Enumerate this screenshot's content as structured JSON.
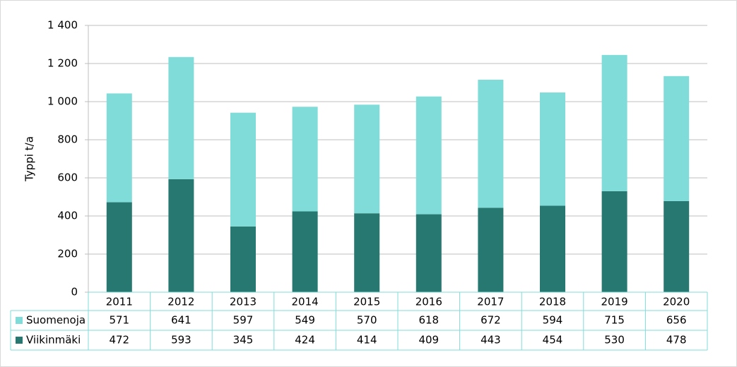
{
  "chart_data": {
    "type": "stacked_bar",
    "y_label": "Typpi t/a",
    "categories": [
      "2011",
      "2012",
      "2013",
      "2014",
      "2015",
      "2016",
      "2017",
      "2018",
      "2019",
      "2020"
    ],
    "series": [
      {
        "name": "Suomenoja",
        "color": "#80dcd8",
        "values": [
          571,
          641,
          597,
          549,
          570,
          618,
          672,
          594,
          715,
          656
        ]
      },
      {
        "name": "Viikinmäki",
        "color": "#267870",
        "values": [
          472,
          593,
          345,
          424,
          414,
          409,
          443,
          454,
          530,
          478
        ]
      }
    ],
    "ylim": [
      0,
      1400
    ],
    "yticks": [
      0,
      200,
      400,
      600,
      800,
      {
        "value": 1000,
        "label": "1 000"
      },
      {
        "value": 1200,
        "label": "1 200"
      },
      {
        "value": 1400,
        "label": "1 400"
      }
    ],
    "grid": true
  }
}
